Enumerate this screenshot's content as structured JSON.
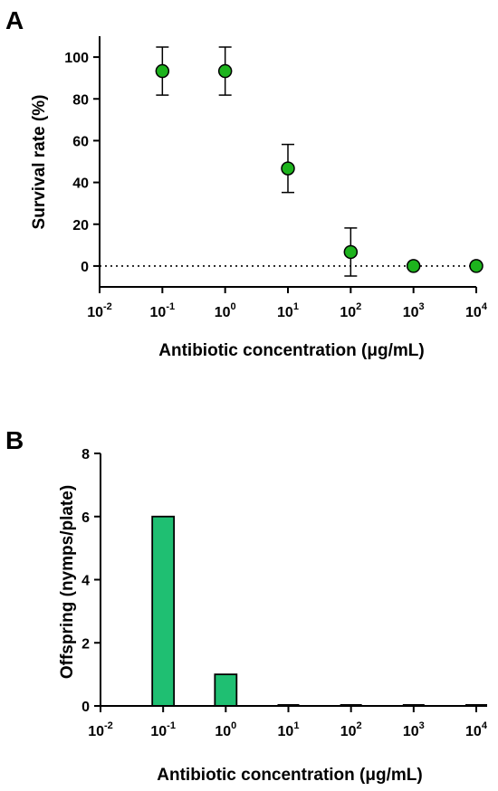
{
  "chart_data": [
    {
      "panel": "A",
      "type": "scatter",
      "xlabel": "Antibiotic concentration (μg/mL)",
      "ylabel": "Survival rate (%)",
      "x_scale": "log10",
      "xlim": [
        0.01,
        10000
      ],
      "ylim": [
        -10,
        110
      ],
      "x_ticks": [
        "10-2",
        "10-1",
        "100",
        "101",
        "102",
        "103",
        "104"
      ],
      "y_ticks": [
        "0",
        "20",
        "40",
        "60",
        "80",
        "100"
      ],
      "reference_line_y": 0,
      "points": [
        {
          "x": 0.1,
          "y": 93.3,
          "error": 11.5
        },
        {
          "x": 1,
          "y": 93.3,
          "error": 11.5
        },
        {
          "x": 10,
          "y": 46.7,
          "error": 11.5
        },
        {
          "x": 100,
          "y": 6.7,
          "error": 11.5
        },
        {
          "x": 1000,
          "y": 0,
          "error": 0
        },
        {
          "x": 10000,
          "y": 0,
          "error": 0
        }
      ],
      "marker_color": "#1db31d"
    },
    {
      "panel": "B",
      "type": "bar",
      "xlabel": "Antibiotic concentration (μg/mL)",
      "ylabel": "Offspring (nymps/plate)",
      "x_scale": "log10",
      "xlim": [
        0.01,
        10000
      ],
      "ylim": [
        0,
        8
      ],
      "x_ticks": [
        "10-2",
        "10-1",
        "100",
        "101",
        "102",
        "103",
        "104"
      ],
      "y_ticks": [
        "0",
        "2",
        "4",
        "6",
        "8"
      ],
      "bars": [
        {
          "x": 0.1,
          "value": 6
        },
        {
          "x": 1,
          "value": 1
        },
        {
          "x": 10,
          "value": 0
        },
        {
          "x": 100,
          "value": 0
        },
        {
          "x": 1000,
          "value": 0
        },
        {
          "x": 10000,
          "value": 0
        }
      ],
      "bar_color": "#1fbf72"
    }
  ],
  "panel_labels": {
    "a": "A",
    "b": "B"
  }
}
